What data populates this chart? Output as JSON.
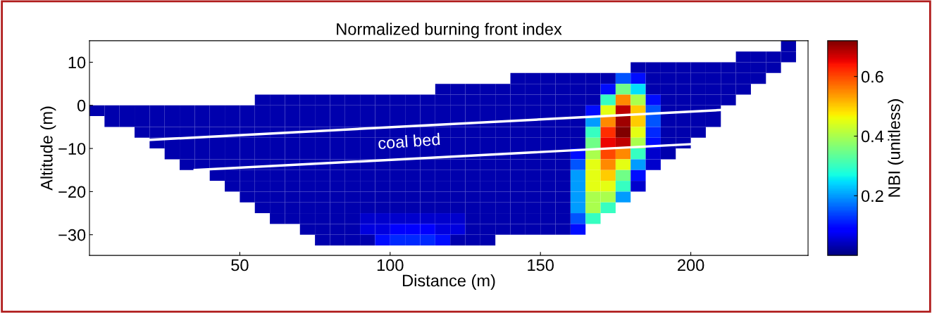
{
  "chart_data": {
    "type": "heatmap",
    "title": "Normalized burning front index",
    "xlabel": "Distance (m)",
    "ylabel": "Altitude (m)",
    "clabel": "NBI (unitless)",
    "xlim": [
      0,
      239
    ],
    "ylim": [
      -34.8,
      15
    ],
    "xticks": [
      50,
      100,
      150,
      200
    ],
    "yticks": [
      -30,
      -20,
      -10,
      0,
      10
    ],
    "clim": [
      0,
      0.72
    ],
    "cticks": [
      0.2,
      0.4,
      0.6
    ],
    "x": [
      2.5,
      7.5,
      12.5,
      17.5,
      22.5,
      27.5,
      32.5,
      37.5,
      42.5,
      47.5,
      52.5,
      57.5,
      62.5,
      67.5,
      72.5,
      77.5,
      82.5,
      87.5,
      92.5,
      97.5,
      102.5,
      107.5,
      112.5,
      117.5,
      122.5,
      127.5,
      132.5,
      137.5,
      142.5,
      147.5,
      152.5,
      157.5,
      162.5,
      167.5,
      172.5,
      177.5,
      182.5,
      187.5,
      192.5,
      197.5,
      202.5,
      207.5,
      212.5,
      217.5,
      222.5,
      227.5,
      232.5,
      237.5
    ],
    "y": [
      13.75,
      11.25,
      8.75,
      6.25,
      3.75,
      1.25,
      -1.25,
      -3.75,
      -6.25,
      -8.75,
      -11.25,
      -13.75,
      -16.25,
      -18.75,
      -21.25,
      -23.75,
      -26.25,
      -28.75,
      -31.25
    ],
    "cells": [
      [
        null,
        null,
        null,
        null,
        null,
        null,
        null,
        null,
        null,
        null,
        null,
        null,
        null,
        null,
        null,
        null,
        null,
        null,
        null,
        null,
        null,
        null,
        null,
        null,
        null,
        null,
        null,
        null,
        null,
        null,
        null,
        null,
        null,
        null,
        null,
        null,
        null,
        null,
        null,
        null,
        null,
        null,
        null,
        null,
        null,
        null,
        0.03,
        null
      ],
      [
        null,
        null,
        null,
        null,
        null,
        null,
        null,
        null,
        null,
        null,
        null,
        null,
        null,
        null,
        null,
        null,
        null,
        null,
        null,
        null,
        null,
        null,
        null,
        null,
        null,
        null,
        null,
        null,
        null,
        null,
        null,
        null,
        null,
        null,
        null,
        null,
        null,
        null,
        null,
        null,
        null,
        null,
        null,
        0.03,
        0.03,
        0.03,
        0.03,
        null
      ],
      [
        null,
        null,
        null,
        null,
        null,
        null,
        null,
        null,
        null,
        null,
        null,
        null,
        null,
        null,
        null,
        null,
        null,
        null,
        null,
        null,
        null,
        null,
        null,
        null,
        null,
        null,
        null,
        null,
        null,
        null,
        null,
        null,
        null,
        null,
        null,
        null,
        0.03,
        0.03,
        0.03,
        0.03,
        0.03,
        0.03,
        0.03,
        0.03,
        0.03,
        0.03,
        null,
        null
      ],
      [
        null,
        null,
        null,
        null,
        null,
        null,
        null,
        null,
        null,
        null,
        null,
        null,
        null,
        null,
        null,
        null,
        null,
        null,
        null,
        null,
        null,
        null,
        null,
        null,
        null,
        null,
        null,
        null,
        0.03,
        0.03,
        0.03,
        0.03,
        0.03,
        0.03,
        0.03,
        0.15,
        0.1,
        0.03,
        0.03,
        0.03,
        0.03,
        0.03,
        0.03,
        0.03,
        0.03,
        null,
        null,
        null
      ],
      [
        null,
        null,
        null,
        null,
        null,
        null,
        null,
        null,
        null,
        null,
        null,
        null,
        null,
        null,
        null,
        null,
        null,
        null,
        null,
        null,
        null,
        null,
        null,
        0.03,
        0.03,
        0.03,
        0.03,
        0.03,
        0.03,
        0.03,
        0.03,
        0.03,
        0.03,
        0.03,
        0.1,
        0.35,
        0.25,
        0.03,
        0.03,
        0.03,
        0.03,
        0.03,
        0.03,
        0.03,
        null,
        null,
        null,
        null
      ],
      [
        null,
        null,
        null,
        null,
        null,
        null,
        null,
        null,
        null,
        null,
        null,
        0.03,
        0.03,
        0.03,
        0.03,
        0.03,
        0.03,
        0.03,
        0.03,
        0.03,
        0.03,
        0.03,
        0.03,
        0.03,
        0.03,
        0.03,
        0.03,
        0.03,
        0.03,
        0.03,
        0.03,
        0.03,
        0.03,
        0.03,
        0.3,
        0.55,
        0.4,
        0.1,
        0.03,
        0.03,
        0.03,
        0.03,
        0.03,
        null,
        null,
        null,
        null,
        null
      ],
      [
        0.03,
        0.03,
        0.03,
        0.03,
        0.03,
        0.03,
        0.03,
        0.03,
        0.03,
        0.03,
        0.03,
        0.03,
        0.03,
        0.03,
        0.03,
        0.03,
        0.03,
        0.03,
        0.03,
        0.03,
        0.03,
        0.03,
        0.03,
        0.03,
        0.03,
        0.03,
        0.03,
        0.03,
        0.03,
        0.03,
        0.03,
        0.03,
        0.03,
        0.1,
        0.45,
        0.68,
        0.5,
        0.15,
        0.03,
        0.03,
        0.03,
        0.03,
        null,
        null,
        null,
        null,
        null,
        null
      ],
      [
        null,
        0.03,
        0.03,
        0.03,
        0.03,
        0.03,
        0.03,
        0.03,
        0.03,
        0.03,
        0.03,
        0.03,
        0.03,
        0.03,
        0.03,
        0.03,
        0.03,
        0.03,
        0.03,
        0.03,
        0.03,
        0.03,
        0.03,
        0.03,
        0.03,
        0.03,
        0.03,
        0.03,
        0.03,
        0.03,
        0.03,
        0.03,
        0.03,
        0.2,
        0.55,
        0.7,
        0.5,
        0.15,
        0.03,
        0.03,
        0.03,
        0.03,
        null,
        null,
        null,
        null,
        null,
        null
      ],
      [
        null,
        null,
        null,
        0.03,
        0.03,
        0.03,
        0.03,
        0.03,
        0.03,
        0.03,
        0.03,
        0.03,
        0.03,
        0.03,
        0.03,
        0.03,
        0.03,
        0.03,
        0.03,
        0.03,
        0.03,
        0.03,
        0.03,
        0.03,
        0.03,
        0.03,
        0.03,
        0.03,
        0.03,
        0.03,
        0.03,
        0.03,
        0.03,
        0.3,
        0.62,
        0.72,
        0.45,
        0.12,
        0.03,
        0.03,
        0.03,
        null,
        null,
        null,
        null,
        null,
        null,
        null
      ],
      [
        null,
        null,
        null,
        null,
        0.03,
        0.03,
        0.03,
        0.03,
        0.03,
        0.03,
        0.03,
        0.03,
        0.03,
        0.03,
        0.03,
        0.03,
        0.03,
        0.03,
        0.03,
        0.03,
        0.03,
        0.03,
        0.03,
        0.03,
        0.03,
        0.03,
        0.03,
        0.03,
        0.03,
        0.03,
        0.03,
        0.03,
        0.03,
        0.35,
        0.65,
        0.68,
        0.4,
        0.1,
        0.03,
        0.03,
        null,
        null,
        null,
        null,
        null,
        null,
        null,
        null
      ],
      [
        null,
        null,
        null,
        null,
        null,
        0.03,
        0.03,
        0.03,
        0.03,
        0.03,
        0.03,
        0.03,
        0.03,
        0.03,
        0.03,
        0.03,
        0.03,
        0.03,
        0.03,
        0.03,
        0.03,
        0.03,
        0.03,
        0.03,
        0.03,
        0.03,
        0.03,
        0.03,
        0.03,
        0.03,
        0.03,
        0.03,
        0.1,
        0.4,
        0.6,
        0.55,
        0.3,
        0.05,
        0.03,
        null,
        null,
        null,
        null,
        null,
        null,
        null,
        null,
        null
      ],
      [
        null,
        null,
        null,
        null,
        null,
        null,
        0.03,
        0.03,
        0.03,
        0.03,
        0.03,
        0.03,
        0.03,
        0.03,
        0.03,
        0.03,
        0.03,
        0.03,
        0.03,
        0.03,
        0.03,
        0.03,
        0.03,
        0.03,
        0.03,
        0.03,
        0.03,
        0.03,
        0.03,
        0.03,
        0.03,
        0.03,
        0.15,
        0.45,
        0.55,
        0.45,
        0.2,
        0.05,
        null,
        null,
        null,
        null,
        null,
        null,
        null,
        null,
        null,
        null
      ],
      [
        null,
        null,
        null,
        null,
        null,
        null,
        null,
        null,
        0.03,
        0.03,
        0.03,
        0.03,
        0.03,
        0.03,
        0.03,
        0.03,
        0.03,
        0.03,
        0.03,
        0.03,
        0.03,
        0.03,
        0.03,
        0.03,
        0.03,
        0.03,
        0.03,
        0.03,
        0.03,
        0.03,
        0.03,
        0.03,
        0.2,
        0.45,
        0.5,
        0.35,
        0.1,
        null,
        null,
        null,
        null,
        null,
        null,
        null,
        null,
        null,
        null,
        null
      ],
      [
        null,
        null,
        null,
        null,
        null,
        null,
        null,
        null,
        null,
        0.03,
        0.03,
        0.03,
        0.03,
        0.03,
        0.03,
        0.03,
        0.03,
        0.03,
        0.03,
        0.03,
        0.03,
        0.03,
        0.03,
        0.03,
        0.03,
        0.03,
        0.03,
        0.03,
        0.03,
        0.03,
        0.03,
        0.03,
        0.2,
        0.45,
        0.45,
        0.3,
        0.05,
        null,
        null,
        null,
        null,
        null,
        null,
        null,
        null,
        null,
        null,
        null
      ],
      [
        null,
        null,
        null,
        null,
        null,
        null,
        null,
        null,
        null,
        null,
        0.03,
        0.03,
        0.03,
        0.03,
        0.03,
        0.03,
        0.03,
        0.03,
        0.03,
        0.03,
        0.03,
        0.03,
        0.03,
        0.03,
        0.03,
        0.03,
        0.03,
        0.03,
        0.03,
        0.03,
        0.03,
        0.03,
        0.2,
        0.4,
        0.4,
        0.2,
        null,
        null,
        null,
        null,
        null,
        null,
        null,
        null,
        null,
        null,
        null,
        null
      ],
      [
        null,
        null,
        null,
        null,
        null,
        null,
        null,
        null,
        null,
        null,
        null,
        0.03,
        0.03,
        0.03,
        0.03,
        0.03,
        0.03,
        0.03,
        0.03,
        0.03,
        0.03,
        0.03,
        0.03,
        0.03,
        0.03,
        0.03,
        0.03,
        0.03,
        0.03,
        0.03,
        0.03,
        0.03,
        0.2,
        0.4,
        0.3,
        null,
        null,
        null,
        null,
        null,
        null,
        null,
        null,
        null,
        null,
        null,
        null,
        null
      ],
      [
        null,
        null,
        null,
        null,
        null,
        null,
        null,
        null,
        null,
        null,
        null,
        null,
        0.03,
        0.03,
        0.03,
        0.03,
        0.03,
        0.03,
        0.05,
        0.05,
        0.05,
        0.05,
        0.05,
        0.05,
        0.05,
        0.03,
        0.03,
        0.03,
        0.03,
        0.03,
        0.03,
        0.03,
        0.15,
        0.3,
        null,
        null,
        null,
        null,
        null,
        null,
        null,
        null,
        null,
        null,
        null,
        null,
        null,
        null
      ],
      [
        null,
        null,
        null,
        null,
        null,
        null,
        null,
        null,
        null,
        null,
        null,
        null,
        null,
        null,
        0.03,
        0.03,
        0.03,
        0.03,
        0.06,
        0.06,
        0.08,
        0.08,
        0.08,
        0.06,
        0.06,
        0.03,
        0.03,
        0.03,
        0.03,
        0.03,
        0.03,
        0.03,
        0.1,
        null,
        null,
        null,
        null,
        null,
        null,
        null,
        null,
        null,
        null,
        null,
        null,
        null,
        null,
        null
      ],
      [
        null,
        null,
        null,
        null,
        null,
        null,
        null,
        null,
        null,
        null,
        null,
        null,
        null,
        null,
        null,
        0.03,
        0.03,
        0.03,
        0.03,
        0.1,
        0.12,
        0.12,
        0.12,
        0.1,
        0.03,
        0.03,
        0.03,
        null,
        null,
        null,
        null,
        null,
        null,
        null,
        null,
        null,
        null,
        null,
        null,
        null,
        null,
        null,
        null,
        null,
        null,
        null,
        null,
        null
      ]
    ],
    "series": [
      {
        "type": "line",
        "color": "#ffffff",
        "x": [
          20,
          212
        ],
        "values": [
          -8,
          -1
        ]
      },
      {
        "type": "line",
        "color": "#ffffff",
        "x": [
          35,
          200
        ],
        "values": [
          -15,
          -9
        ]
      }
    ],
    "annotations": [
      "coal bed"
    ]
  }
}
